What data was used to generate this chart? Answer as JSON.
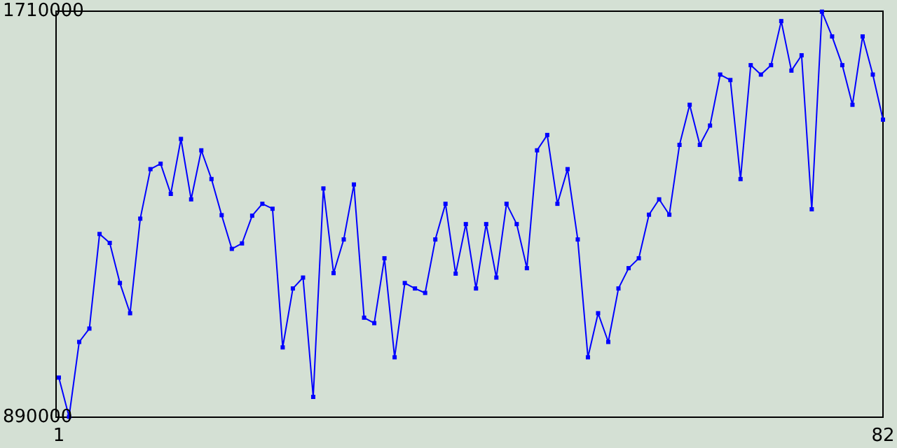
{
  "chart_data": {
    "type": "line",
    "x": [
      1,
      2,
      3,
      4,
      5,
      6,
      7,
      8,
      9,
      10,
      11,
      12,
      13,
      14,
      15,
      16,
      17,
      18,
      19,
      20,
      21,
      22,
      23,
      24,
      25,
      26,
      27,
      28,
      29,
      30,
      31,
      32,
      33,
      34,
      35,
      36,
      37,
      38,
      39,
      40,
      41,
      42,
      43,
      44,
      45,
      46,
      47,
      48,
      49,
      50,
      51,
      52,
      53,
      54,
      55,
      56,
      57,
      58,
      59,
      60,
      61,
      62,
      63,
      64,
      65,
      66,
      67,
      68,
      69,
      70,
      71,
      72,
      73,
      74,
      75,
      76,
      77,
      78,
      79,
      80,
      81,
      82
    ],
    "series": [
      {
        "color": "#0000ff",
        "values": [
          970000,
          891000,
          1042000,
          1069000,
          1260000,
          1242000,
          1161000,
          1100000,
          1291000,
          1391000,
          1402000,
          1341000,
          1452000,
          1330000,
          1429000,
          1371000,
          1298000,
          1230000,
          1241000,
          1297000,
          1321000,
          1311000,
          1031000,
          1150000,
          1172000,
          931000,
          1352000,
          1181000,
          1249000,
          1360000,
          1091000,
          1080000,
          1211000,
          1011000,
          1161000,
          1150000,
          1141000,
          1249000,
          1321000,
          1180000,
          1280000,
          1150000,
          1280000,
          1172000,
          1321000,
          1280000,
          1191000,
          1429000,
          1460000,
          1321000,
          1391000,
          1249000,
          1011000,
          1100000,
          1042000,
          1150000,
          1191000,
          1211000,
          1299000,
          1330000,
          1299000,
          1440000,
          1521000,
          1440000,
          1479000,
          1582000,
          1571000,
          1371000,
          1601000,
          1582000,
          1601000,
          1690000,
          1590000,
          1621000,
          1310000,
          1709000,
          1659000,
          1601000,
          1521000,
          1659000,
          1582000,
          1491000
        ]
      }
    ],
    "xlim": [
      1,
      82
    ],
    "xticks": [
      1,
      82
    ],
    "ylim": [
      890000,
      1710000
    ],
    "yticks": [
      890000,
      1710000
    ],
    "marker": "square",
    "line_style": "solid"
  }
}
